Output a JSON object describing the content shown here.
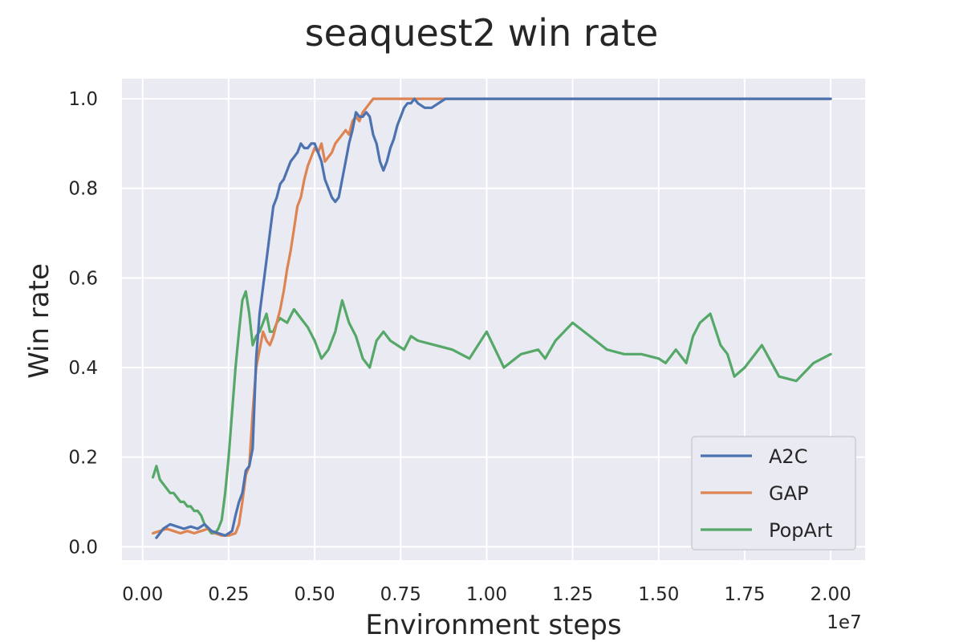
{
  "chart_data": {
    "type": "line",
    "title": "seaquest2 win rate",
    "xlabel": "Environment steps",
    "ylabel": "Win rate",
    "x_offset_label": "1e7",
    "xlim": [
      -0.06,
      2.1
    ],
    "ylim": [
      -0.03,
      1.045
    ],
    "x_ticks": [
      0.0,
      0.25,
      0.5,
      0.75,
      1.0,
      1.25,
      1.5,
      1.75,
      2.0
    ],
    "x_tick_labels": [
      "0.00",
      "0.25",
      "0.50",
      "0.75",
      "1.00",
      "1.25",
      "1.50",
      "1.75",
      "2.00"
    ],
    "y_ticks": [
      0.0,
      0.2,
      0.4,
      0.6,
      0.8,
      1.0
    ],
    "y_tick_labels": [
      "0.0",
      "0.2",
      "0.4",
      "0.6",
      "0.8",
      "1.0"
    ],
    "grid": true,
    "legend_position": "lower-right",
    "series": [
      {
        "name": "A2C",
        "color": "#4c72b0",
        "x": [
          0.04,
          0.05,
          0.06,
          0.08,
          0.1,
          0.12,
          0.14,
          0.16,
          0.18,
          0.2,
          0.22,
          0.24,
          0.26,
          0.27,
          0.28,
          0.29,
          0.3,
          0.31,
          0.32,
          0.33,
          0.34,
          0.35,
          0.36,
          0.37,
          0.38,
          0.39,
          0.4,
          0.41,
          0.42,
          0.43,
          0.44,
          0.45,
          0.46,
          0.47,
          0.48,
          0.49,
          0.5,
          0.51,
          0.52,
          0.53,
          0.54,
          0.55,
          0.56,
          0.57,
          0.58,
          0.59,
          0.6,
          0.61,
          0.62,
          0.63,
          0.64,
          0.65,
          0.66,
          0.67,
          0.68,
          0.69,
          0.7,
          0.71,
          0.72,
          0.73,
          0.74,
          0.75,
          0.76,
          0.77,
          0.78,
          0.79,
          0.8,
          0.82,
          0.84,
          0.86,
          0.88,
          0.9,
          1.0,
          1.25,
          1.5,
          1.75,
          2.0
        ],
        "y": [
          0.02,
          0.03,
          0.04,
          0.05,
          0.045,
          0.04,
          0.045,
          0.04,
          0.05,
          0.035,
          0.03,
          0.025,
          0.035,
          0.07,
          0.1,
          0.12,
          0.17,
          0.18,
          0.22,
          0.42,
          0.52,
          0.58,
          0.64,
          0.7,
          0.76,
          0.78,
          0.81,
          0.82,
          0.84,
          0.86,
          0.87,
          0.88,
          0.9,
          0.89,
          0.89,
          0.9,
          0.9,
          0.88,
          0.86,
          0.82,
          0.8,
          0.78,
          0.77,
          0.78,
          0.82,
          0.86,
          0.9,
          0.93,
          0.97,
          0.96,
          0.96,
          0.97,
          0.96,
          0.92,
          0.9,
          0.86,
          0.84,
          0.86,
          0.89,
          0.91,
          0.94,
          0.96,
          0.98,
          0.99,
          0.99,
          1.0,
          0.99,
          0.98,
          0.98,
          0.99,
          1.0,
          1.0,
          1.0,
          1.0,
          1.0,
          1.0,
          1.0
        ]
      },
      {
        "name": "GAP",
        "color": "#dd8452",
        "x": [
          0.03,
          0.05,
          0.07,
          0.09,
          0.11,
          0.13,
          0.15,
          0.17,
          0.19,
          0.21,
          0.23,
          0.25,
          0.27,
          0.28,
          0.29,
          0.3,
          0.31,
          0.32,
          0.33,
          0.34,
          0.35,
          0.36,
          0.37,
          0.38,
          0.39,
          0.4,
          0.41,
          0.42,
          0.43,
          0.44,
          0.45,
          0.46,
          0.47,
          0.48,
          0.49,
          0.5,
          0.51,
          0.52,
          0.53,
          0.54,
          0.55,
          0.56,
          0.57,
          0.58,
          0.59,
          0.6,
          0.61,
          0.62,
          0.63,
          0.64,
          0.65,
          0.66,
          0.67,
          0.7,
          0.8,
          1.0,
          1.25,
          1.5,
          1.75,
          2.0
        ],
        "y": [
          0.03,
          0.035,
          0.04,
          0.035,
          0.03,
          0.035,
          0.03,
          0.035,
          0.04,
          0.03,
          0.025,
          0.025,
          0.03,
          0.05,
          0.1,
          0.16,
          0.18,
          0.3,
          0.4,
          0.44,
          0.48,
          0.46,
          0.45,
          0.47,
          0.5,
          0.53,
          0.57,
          0.62,
          0.66,
          0.71,
          0.76,
          0.78,
          0.82,
          0.85,
          0.87,
          0.89,
          0.88,
          0.9,
          0.86,
          0.87,
          0.88,
          0.9,
          0.91,
          0.92,
          0.93,
          0.92,
          0.95,
          0.96,
          0.95,
          0.97,
          0.98,
          0.99,
          1.0,
          1.0,
          1.0,
          1.0,
          1.0,
          1.0,
          1.0,
          1.0
        ]
      },
      {
        "name": "PopArt",
        "color": "#55a868",
        "x": [
          0.03,
          0.04,
          0.05,
          0.06,
          0.07,
          0.08,
          0.09,
          0.1,
          0.11,
          0.12,
          0.13,
          0.14,
          0.15,
          0.16,
          0.17,
          0.18,
          0.19,
          0.2,
          0.21,
          0.22,
          0.23,
          0.24,
          0.25,
          0.26,
          0.27,
          0.28,
          0.29,
          0.3,
          0.31,
          0.32,
          0.33,
          0.34,
          0.35,
          0.36,
          0.37,
          0.38,
          0.39,
          0.4,
          0.42,
          0.44,
          0.46,
          0.48,
          0.5,
          0.52,
          0.54,
          0.56,
          0.58,
          0.6,
          0.62,
          0.64,
          0.66,
          0.68,
          0.7,
          0.72,
          0.74,
          0.76,
          0.78,
          0.8,
          0.85,
          0.9,
          0.95,
          1.0,
          1.05,
          1.1,
          1.15,
          1.17,
          1.2,
          1.25,
          1.3,
          1.35,
          1.4,
          1.45,
          1.5,
          1.52,
          1.55,
          1.58,
          1.6,
          1.62,
          1.65,
          1.68,
          1.7,
          1.72,
          1.75,
          1.8,
          1.85,
          1.9,
          1.95,
          2.0
        ],
        "y": [
          0.155,
          0.18,
          0.15,
          0.14,
          0.13,
          0.12,
          0.12,
          0.11,
          0.1,
          0.1,
          0.09,
          0.09,
          0.08,
          0.08,
          0.07,
          0.05,
          0.04,
          0.03,
          0.03,
          0.04,
          0.06,
          0.12,
          0.2,
          0.3,
          0.4,
          0.48,
          0.55,
          0.57,
          0.52,
          0.45,
          0.47,
          0.48,
          0.5,
          0.52,
          0.48,
          0.48,
          0.5,
          0.51,
          0.5,
          0.53,
          0.51,
          0.49,
          0.46,
          0.42,
          0.44,
          0.48,
          0.55,
          0.5,
          0.47,
          0.42,
          0.4,
          0.46,
          0.48,
          0.46,
          0.45,
          0.44,
          0.47,
          0.46,
          0.45,
          0.44,
          0.42,
          0.48,
          0.4,
          0.43,
          0.44,
          0.42,
          0.46,
          0.5,
          0.47,
          0.44,
          0.43,
          0.43,
          0.42,
          0.41,
          0.44,
          0.41,
          0.47,
          0.5,
          0.52,
          0.45,
          0.43,
          0.38,
          0.4,
          0.45,
          0.38,
          0.37,
          0.41,
          0.43
        ]
      }
    ]
  }
}
